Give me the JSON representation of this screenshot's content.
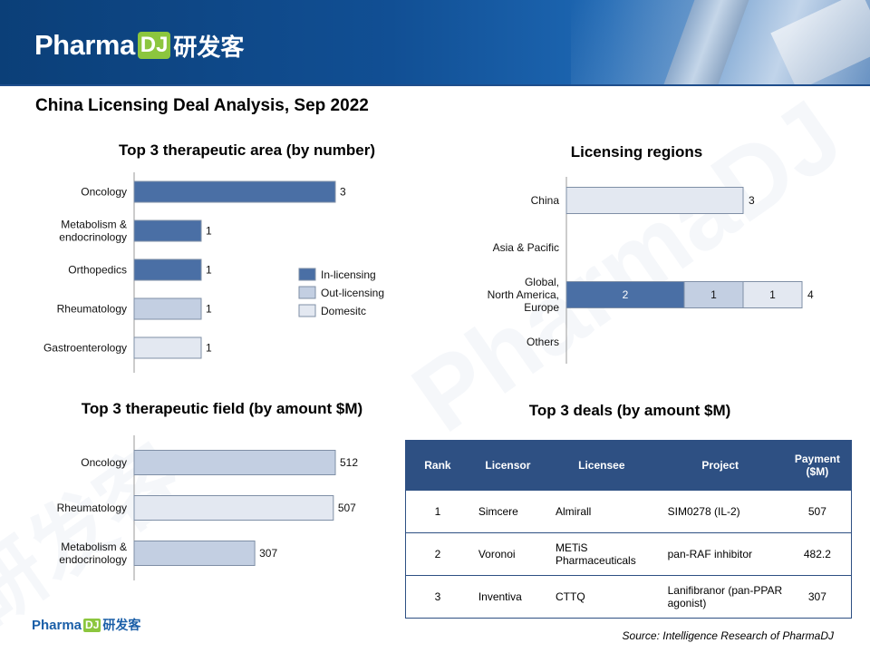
{
  "header": {
    "logo_word": "Pharma",
    "logo_badge": "DJ",
    "logo_cn": "研发客"
  },
  "main_title": "China Licensing Deal Analysis, Sep 2022",
  "colors": {
    "in_licensing": "#4a6fa5",
    "out_licensing": "#c3cfe2",
    "domestic": "#e3e8f1",
    "table_header": "#2e5083"
  },
  "watermark": {
    "word": "PharmaDJ",
    "cn": "研发客"
  },
  "chart_data": [
    {
      "type": "bar",
      "orientation": "horizontal",
      "title": "Top 3 therapeutic area (by number)",
      "categories": [
        "Oncology",
        "Metabolism & endocrinology",
        "Orthopedics",
        "Rheumatology",
        "Gastroenterology"
      ],
      "values": [
        3,
        1,
        1,
        1,
        1
      ],
      "series_color": [
        "in_licensing",
        "in_licensing",
        "in_licensing",
        "out_licensing",
        "domestic"
      ],
      "legend": {
        "position": "right",
        "items": [
          "In-licensing",
          "Out-licensing",
          "Domesitc"
        ]
      },
      "xlim": [
        0,
        3
      ]
    },
    {
      "type": "bar",
      "orientation": "horizontal",
      "stacked": true,
      "title": "Licensing regions",
      "categories": [
        "China",
        "Asia & Pacific",
        "Global, North America, Europe",
        "Others"
      ],
      "series": [
        {
          "values": [
            0,
            0,
            2,
            0
          ],
          "color": "in_licensing"
        },
        {
          "values": [
            0,
            0,
            1,
            0
          ],
          "color": "out_licensing"
        },
        {
          "values": [
            3,
            0,
            1,
            0
          ],
          "color": "domestic"
        }
      ],
      "totals": [
        3,
        null,
        4,
        null
      ],
      "xlim": [
        0,
        4
      ]
    },
    {
      "type": "bar",
      "orientation": "horizontal",
      "title": "Top 3 therapeutic field (by amount $M)",
      "categories": [
        "Oncology",
        "Rheumatology",
        "Metabolism & endocrinology"
      ],
      "values": [
        512,
        507,
        307
      ],
      "series_color": [
        "out_licensing",
        "domestic",
        "out_licensing"
      ],
      "xlim": [
        0,
        512
      ]
    },
    {
      "type": "table",
      "title": "Top 3 deals (by amount $M)",
      "columns": [
        "Rank",
        "Licensor",
        "Licensee",
        "Project",
        "Payment ($M)"
      ],
      "rows": [
        [
          "1",
          "Simcere",
          "Almirall",
          "SIM0278 (IL-2)",
          "507"
        ],
        [
          "2",
          "Voronoi",
          "METiS Pharmaceuticals",
          "pan-RAF inhibitor",
          "482.2"
        ],
        [
          "3",
          "Inventiva",
          "CTTQ",
          "Lanifibranor (pan-PPAR agonist)",
          "307"
        ]
      ]
    }
  ],
  "footer": {
    "logo_word": "Pharma",
    "logo_badge": "DJ",
    "logo_cn": "研发客",
    "source": "Source: Intelligence Research of PharmaDJ"
  }
}
